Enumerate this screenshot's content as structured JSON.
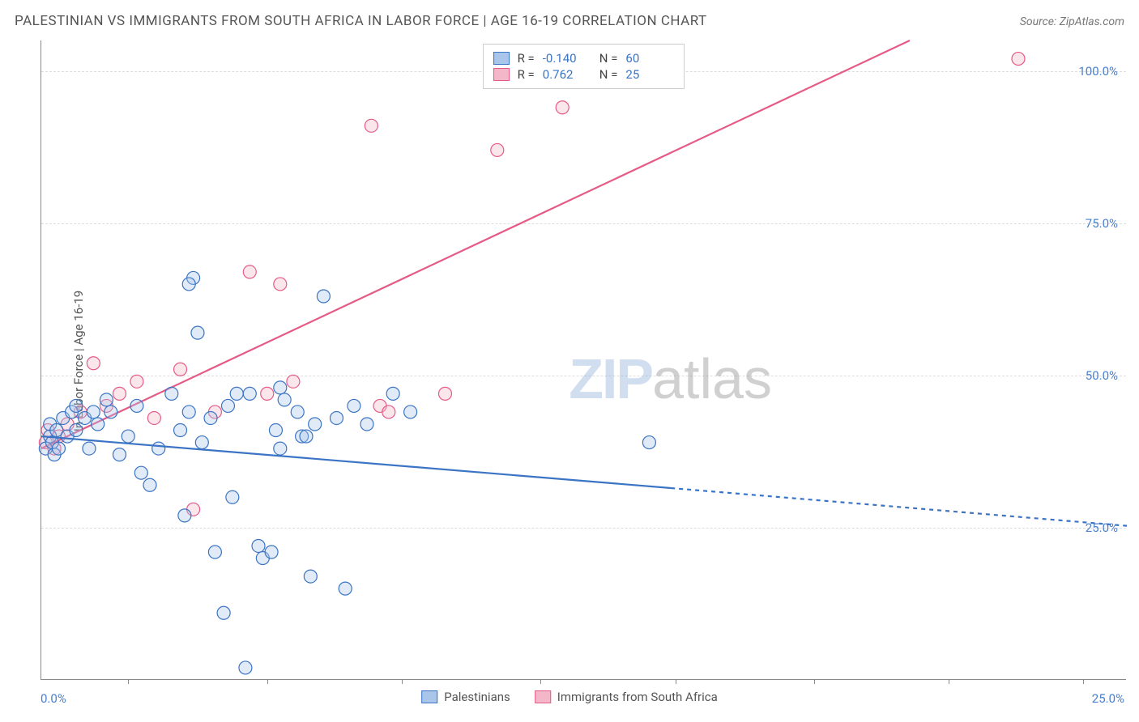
{
  "title": "PALESTINIAN VS IMMIGRANTS FROM SOUTH AFRICA IN LABOR FORCE | AGE 16-19 CORRELATION CHART",
  "source": "Source: ZipAtlas.com",
  "yaxis_title": "In Labor Force | Age 16-19",
  "watermark": {
    "part1": "ZIP",
    "part2": "atlas"
  },
  "chart": {
    "type": "scatter-with-trendlines",
    "background_color": "#ffffff",
    "grid_color": "#dddddd",
    "axis_color": "#888888",
    "xlim": [
      0,
      25
    ],
    "ylim": [
      0,
      105
    ],
    "x_origin_label": "0.0%",
    "x_end_label": "25.0%",
    "xtick_positions": [
      2.0,
      5.2,
      8.3,
      11.5,
      14.6,
      17.8,
      20.9,
      24.0
    ],
    "yticks": [
      {
        "value": 25,
        "label": "25.0%"
      },
      {
        "value": 50,
        "label": "50.0%"
      },
      {
        "value": 75,
        "label": "75.0%"
      },
      {
        "value": 100,
        "label": "100.0%"
      }
    ],
    "tick_label_color": "#4a7fc9",
    "marker_radius": 8,
    "marker_stroke_width": 1.2,
    "marker_fill_opacity": 0.35,
    "trendline_width": 2.2,
    "trendline_dash_extension": "5,5"
  },
  "series": {
    "blue": {
      "label": "Palestinians",
      "color_stroke": "#3b74c4",
      "color_fill": "#a9c6ea",
      "R": "-0.140",
      "N": "60",
      "points": [
        [
          0.1,
          38
        ],
        [
          0.2,
          40
        ],
        [
          0.2,
          42
        ],
        [
          0.25,
          39
        ],
        [
          0.3,
          37
        ],
        [
          0.35,
          41
        ],
        [
          0.4,
          38
        ],
        [
          0.5,
          43
        ],
        [
          0.6,
          40
        ],
        [
          0.7,
          44
        ],
        [
          0.8,
          41
        ],
        [
          0.8,
          45
        ],
        [
          1.0,
          43
        ],
        [
          1.1,
          38
        ],
        [
          1.2,
          44
        ],
        [
          1.3,
          42
        ],
        [
          1.5,
          46
        ],
        [
          1.6,
          44
        ],
        [
          1.8,
          37
        ],
        [
          2.0,
          40
        ],
        [
          2.2,
          45
        ],
        [
          2.3,
          34
        ],
        [
          2.5,
          32
        ],
        [
          2.7,
          38
        ],
        [
          3.0,
          47
        ],
        [
          3.2,
          41
        ],
        [
          3.3,
          27
        ],
        [
          3.4,
          44
        ],
        [
          3.5,
          66
        ],
        [
          3.4,
          65
        ],
        [
          3.6,
          57
        ],
        [
          3.7,
          39
        ],
        [
          3.9,
          43
        ],
        [
          4.0,
          21
        ],
        [
          4.2,
          11
        ],
        [
          4.3,
          45
        ],
        [
          4.4,
          30
        ],
        [
          4.5,
          47
        ],
        [
          5.0,
          22
        ],
        [
          5.1,
          20
        ],
        [
          5.4,
          41
        ],
        [
          5.5,
          38
        ],
        [
          5.6,
          46
        ],
        [
          5.9,
          44
        ],
        [
          6.0,
          40
        ],
        [
          6.2,
          17
        ],
        [
          6.3,
          42
        ],
        [
          6.5,
          63
        ],
        [
          6.8,
          43
        ],
        [
          7.0,
          15
        ],
        [
          7.2,
          45
        ],
        [
          7.5,
          42
        ],
        [
          8.1,
          47
        ],
        [
          8.5,
          44
        ],
        [
          4.7,
          2
        ],
        [
          4.8,
          47
        ],
        [
          5.5,
          48
        ],
        [
          6.1,
          40
        ],
        [
          14.0,
          39
        ],
        [
          5.3,
          21
        ]
      ],
      "trend_solid": {
        "x1": 0,
        "y1": 40,
        "x2": 14.5,
        "y2": 31.5
      },
      "trend_dash": {
        "x1": 14.5,
        "y1": 31.5,
        "x2": 25,
        "y2": 25.3
      }
    },
    "pink": {
      "label": "Immigrants from South Africa",
      "color_stroke": "#e65a86",
      "color_fill": "#f4b7c9",
      "R": "0.762",
      "N": "25",
      "points": [
        [
          0.1,
          39
        ],
        [
          0.15,
          41
        ],
        [
          0.3,
          38
        ],
        [
          0.4,
          40
        ],
        [
          0.6,
          42
        ],
        [
          0.9,
          44
        ],
        [
          1.2,
          52
        ],
        [
          1.5,
          45
        ],
        [
          1.8,
          47
        ],
        [
          2.2,
          49
        ],
        [
          2.6,
          43
        ],
        [
          3.2,
          51
        ],
        [
          3.5,
          28
        ],
        [
          4.0,
          44
        ],
        [
          4.8,
          67
        ],
        [
          5.2,
          47
        ],
        [
          5.5,
          65
        ],
        [
          5.8,
          49
        ],
        [
          7.6,
          91
        ],
        [
          7.8,
          45
        ],
        [
          8.0,
          44
        ],
        [
          9.3,
          47
        ],
        [
          10.5,
          87
        ],
        [
          12.0,
          94
        ],
        [
          22.5,
          102
        ]
      ],
      "trend_solid": {
        "x1": 0,
        "y1": 38,
        "x2": 20.0,
        "y2": 105
      },
      "trend_dash": null
    }
  },
  "legend_top": {
    "rows": [
      {
        "series": "blue",
        "R_label": "R =",
        "N_label": "N ="
      },
      {
        "series": "pink",
        "R_label": "R =",
        "N_label": "N ="
      }
    ]
  }
}
